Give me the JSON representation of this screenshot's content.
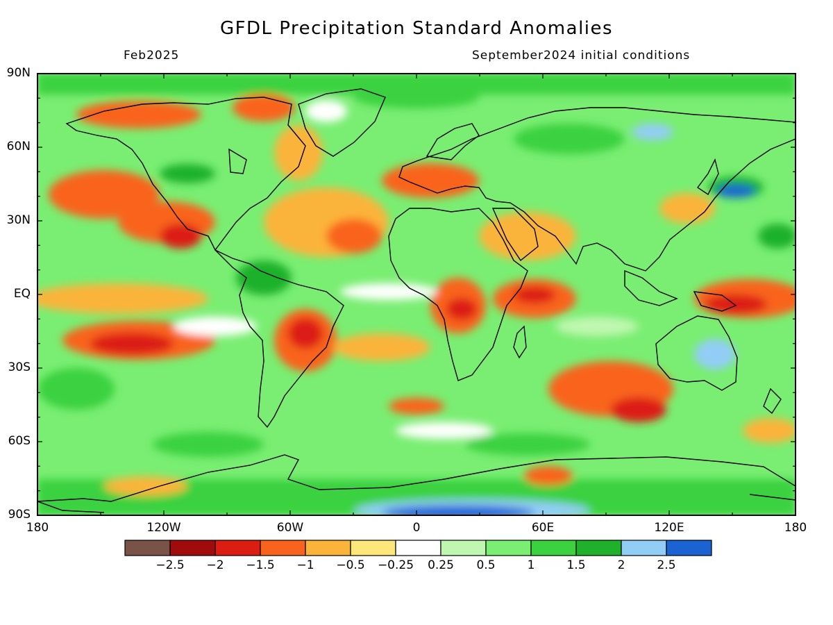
{
  "title": "GFDL Precipitation Standard Anomalies",
  "subtitle_left": "Feb2025",
  "subtitle_right": "September2024 initial conditions",
  "lat_labels": [
    "90N",
    "60N",
    "30N",
    "EQ",
    "30S",
    "60S",
    "90S"
  ],
  "lon_labels": [
    "180",
    "120W",
    "60W",
    "0",
    "60E",
    "120E",
    "180"
  ],
  "colorbar": {
    "colors": [
      "#7a5348",
      "#a00b0b",
      "#dc1e12",
      "#f9631d",
      "#fbb43a",
      "#fde67a",
      "#ffffff",
      "#c0f7b0",
      "#79ee72",
      "#3bd13f",
      "#1fb12a",
      "#92cdf5",
      "#1b63d3"
    ],
    "tick_labels": [
      "−2.5",
      "−2",
      "−1.5",
      "−1",
      "−0.5",
      "−0.25",
      "0.25",
      "0.5",
      "1",
      "1.5",
      "2",
      "2.5"
    ]
  },
  "chart_data": {
    "type": "heatmap",
    "title": "GFDL Precipitation Standard Anomalies",
    "variable": "precipitation standard anomaly",
    "valid_month": "Feb2025",
    "initial_conditions": "September2024",
    "x_range": [
      -180,
      180
    ],
    "y_range": [
      -90,
      90
    ],
    "levels": [
      -2.5,
      -2,
      -1.5,
      -1,
      -0.5,
      -0.25,
      0.25,
      0.5,
      1,
      1.5,
      2,
      2.5
    ],
    "anomaly_regions": [
      {
        "region": "eastern equatorial Pacific",
        "lon": -150,
        "lat": 2,
        "value": -0.5
      },
      {
        "region": "South Pacific subtropics",
        "lon": -130,
        "lat": -15,
        "value": -1.7
      },
      {
        "region": "North Pacific",
        "lon": -160,
        "lat": 40,
        "value": -1.2
      },
      {
        "region": "western US / Baja",
        "lon": -115,
        "lat": 32,
        "value": -1.6
      },
      {
        "region": "Alaska / Beaufort",
        "lon": -130,
        "lat": 70,
        "value": -1.3
      },
      {
        "region": "central Brazil",
        "lon": -55,
        "lat": -12,
        "value": -1.8
      },
      {
        "region": "tropical South Atlantic",
        "lon": -20,
        "lat": -18,
        "value": -1.0
      },
      {
        "region": "East Africa",
        "lon": 35,
        "lat": -5,
        "value": -1.6
      },
      {
        "region": "western Indian Ocean",
        "lon": 60,
        "lat": -2,
        "value": -1.5
      },
      {
        "region": "western Pacific warm pool",
        "lon": 155,
        "lat": -3,
        "value": -2.0
      },
      {
        "region": "southern Indian Ocean",
        "lon": 85,
        "lat": -38,
        "value": -1.5
      },
      {
        "region": "Europe / Mediterranean",
        "lon": 20,
        "lat": 45,
        "value": -1.4
      },
      {
        "region": "Antarctica",
        "lon": 15,
        "lat": -87,
        "value": 2.5
      },
      {
        "region": "Arctic Ocean",
        "lon": 0,
        "lat": 85,
        "value": 1.2
      },
      {
        "region": "northern Eurasia",
        "lon": 90,
        "lat": 60,
        "value": 1.5
      },
      {
        "region": "eastern Australia",
        "lon": 150,
        "lat": -25,
        "value": 2.0
      },
      {
        "region": "northwest Pacific",
        "lon": 150,
        "lat": 33,
        "value": 2.2
      },
      {
        "region": "western Amazon",
        "lon": -70,
        "lat": 2,
        "value": 1.5
      }
    ]
  }
}
